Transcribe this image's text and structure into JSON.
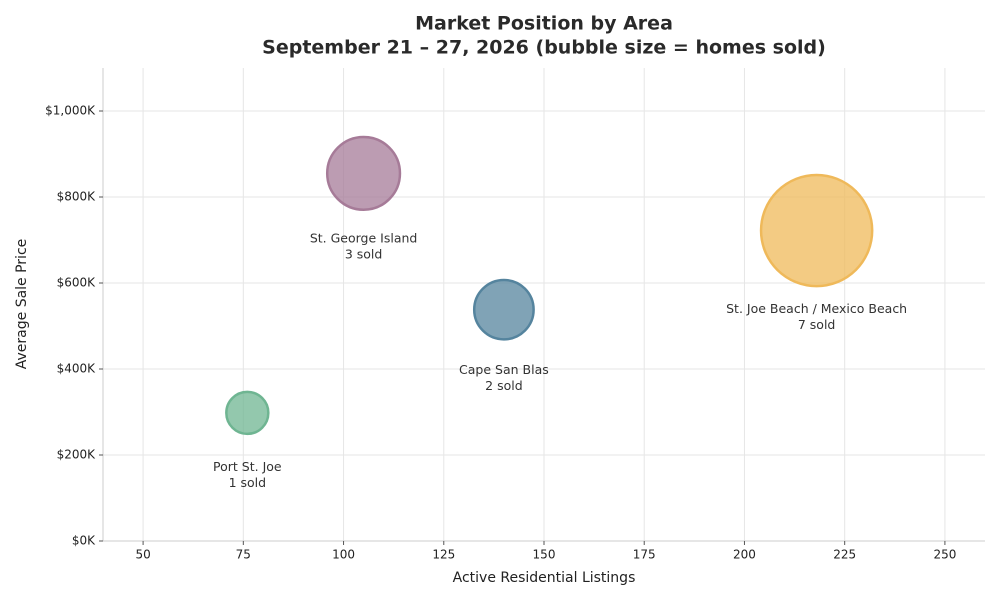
{
  "chart_data": {
    "type": "bubble",
    "title": "Market Position by Area",
    "subtitle": "September 21 – 27, 2026  (bubble size = homes sold)",
    "x_label": "Active Residential Listings",
    "y_label": "Average Sale Price",
    "categories": [
      "Port St. Joe",
      "St. George Island",
      "Cape San Blas",
      "St. Joe Beach / Mexico Beach"
    ],
    "x": [
      76,
      105,
      140,
      218
    ],
    "values": [
      298000,
      855000,
      538000,
      722000
    ],
    "sizes": [
      1,
      3,
      2,
      7
    ],
    "size_labels": [
      "1 sold",
      "3 sold",
      "2 sold",
      "7 sold"
    ],
    "colors": [
      "#6fb592",
      "#a67b98",
      "#55849e",
      "#efb95a"
    ],
    "xlim": [
      40,
      260
    ],
    "xticks": [
      50,
      75,
      100,
      125,
      150,
      175,
      200,
      225,
      250
    ],
    "ylim": [
      0,
      1100000
    ],
    "yticks": [
      {
        "value": 0,
        "label": "$0K"
      },
      {
        "value": 200000,
        "label": "$200K"
      },
      {
        "value": 400000,
        "label": "$400K"
      },
      {
        "value": 600000,
        "label": "$600K"
      },
      {
        "value": 800000,
        "label": "$800K"
      },
      {
        "value": 1000000,
        "label": "$1,000K"
      }
    ],
    "grid": true
  }
}
